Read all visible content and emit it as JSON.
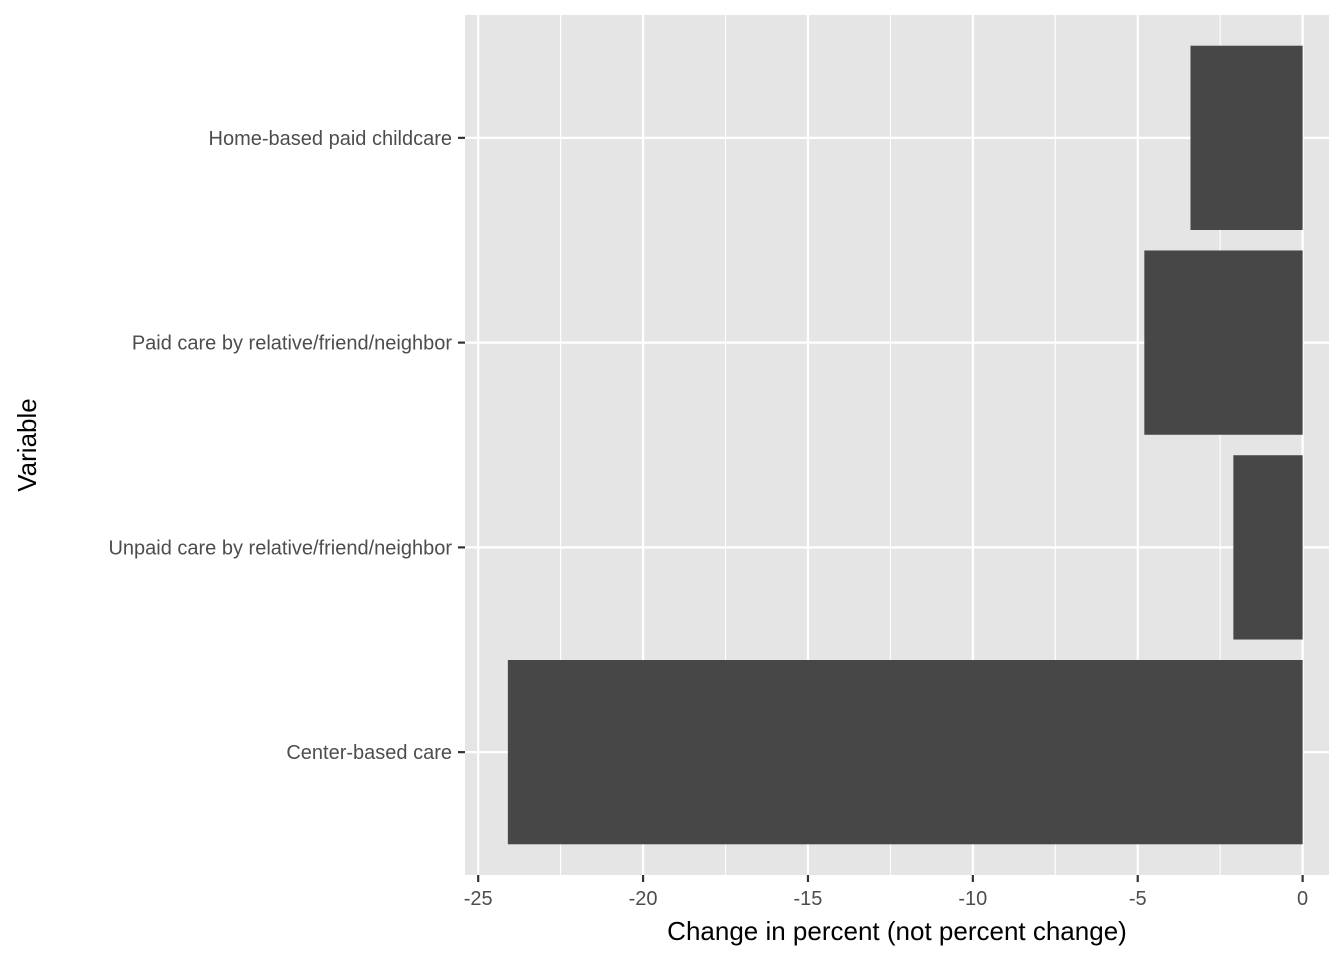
{
  "chart_data": {
    "type": "bar",
    "orientation": "horizontal",
    "categories": [
      "Home-based paid childcare",
      "Paid care by relative/friend/neighbor",
      "Unpaid care by relative/friend/neighbor",
      "Center-based care"
    ],
    "values": [
      -3.4,
      -4.8,
      -2.1,
      -24.1
    ],
    "xlabel": "Change in percent (not percent change)",
    "ylabel": "Variable",
    "xlim": [
      -25.4,
      0.8
    ],
    "xticks": [
      -25,
      -20,
      -15,
      -10,
      -5,
      0
    ],
    "xtick_labels": [
      "-25",
      "-20",
      "-15",
      "-10",
      "-5",
      "0"
    ],
    "grid": true,
    "legend": "none",
    "colors": {
      "bar": "#474747",
      "panel": "#e5e5e5",
      "grid": "#ffffff",
      "tick_text": "#4d4d4d",
      "title_text": "#000000"
    }
  }
}
